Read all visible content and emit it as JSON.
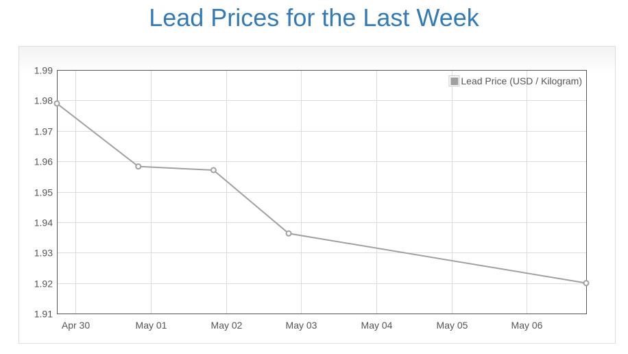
{
  "page": {
    "title": "Lead Prices for the Last Week"
  },
  "chart_data": {
    "type": "line",
    "title": "Lead Prices for the Last Week",
    "xlabel": "",
    "ylabel": "",
    "x_ticks": [
      "Apr 30",
      "May 01",
      "May 02",
      "May 03",
      "May 04",
      "May 05",
      "May 06"
    ],
    "xlim": [
      "2016-04-29T18:00",
      "2016-05-06T19:00"
    ],
    "y_ticks": [
      1.91,
      1.92,
      1.93,
      1.94,
      1.95,
      1.96,
      1.97,
      1.98,
      1.99
    ],
    "ylim": [
      1.91,
      1.99
    ],
    "grid": true,
    "legend": "top-right",
    "series": [
      {
        "name": "Lead Price (USD / Kilogram)",
        "color": "#a0a0a0",
        "points": [
          {
            "x": "2016-04-29T18:00",
            "y": 1.979
          },
          {
            "x": "2016-04-30T20:00",
            "y": 1.9583
          },
          {
            "x": "2016-05-01T20:00",
            "y": 1.9571
          },
          {
            "x": "2016-05-02T20:00",
            "y": 1.9363
          },
          {
            "x": "2016-05-06T19:00",
            "y": 1.92
          }
        ]
      }
    ]
  }
}
